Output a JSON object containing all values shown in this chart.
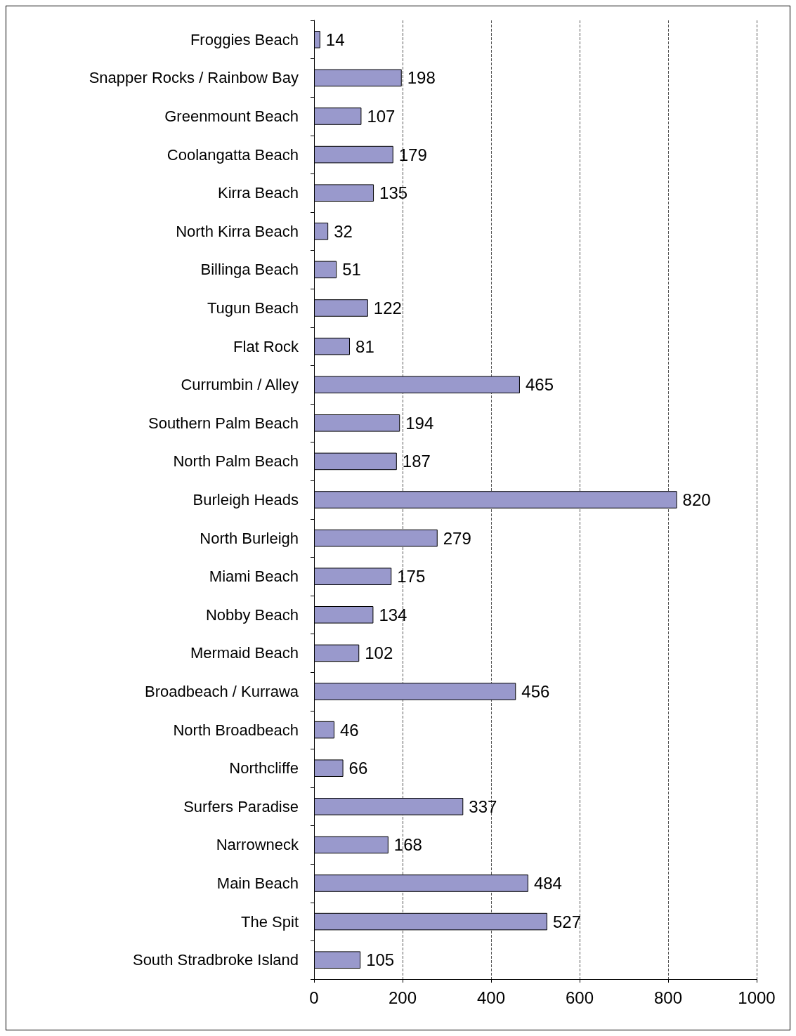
{
  "chart_data": {
    "type": "bar",
    "orientation": "horizontal",
    "categories": [
      "Froggies Beach",
      "Snapper Rocks / Rainbow Bay",
      "Greenmount Beach",
      "Coolangatta Beach",
      "Kirra Beach",
      "North Kirra Beach",
      "Billinga Beach",
      "Tugun Beach",
      "Flat Rock",
      "Currumbin / Alley",
      "Southern Palm Beach",
      "North Palm Beach",
      "Burleigh Heads",
      "North Burleigh",
      "Miami Beach",
      "Nobby Beach",
      "Mermaid Beach",
      "Broadbeach / Kurrawa",
      "North Broadbeach",
      "Northcliffe",
      "Surfers Paradise",
      "Narrowneck",
      "Main Beach",
      "The Spit",
      "South Stradbroke Island"
    ],
    "values": [
      14,
      198,
      107,
      179,
      135,
      32,
      51,
      122,
      81,
      465,
      194,
      187,
      820,
      279,
      175,
      134,
      102,
      456,
      46,
      66,
      337,
      168,
      484,
      527,
      105
    ],
    "color": "#9999cc",
    "xlim": [
      0,
      1000
    ],
    "xticks": [
      0,
      200,
      400,
      600,
      800,
      1000
    ],
    "grid": "x",
    "data_labels": true
  }
}
